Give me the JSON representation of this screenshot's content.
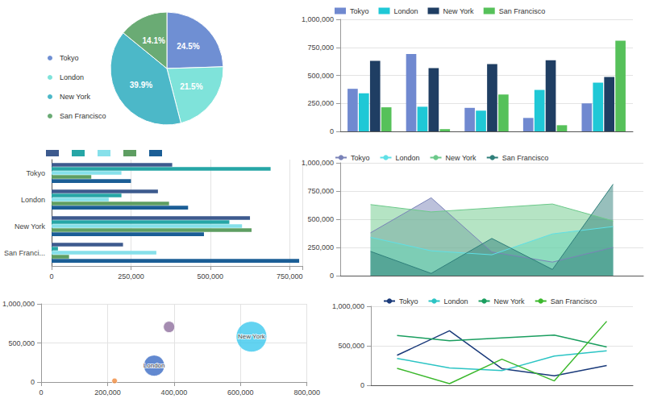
{
  "chart_data": [
    {
      "type": "pie",
      "categories": [
        "Tokyo",
        "London",
        "New York",
        "San Francisco"
      ],
      "values": [
        24.5,
        21.5,
        39.9,
        14.1
      ],
      "value_labels": [
        "24.5%",
        "21.5%",
        "39.9%",
        "14.1%"
      ],
      "colors": [
        "#6f8fd3",
        "#7fe3da",
        "#4cb8c8",
        "#6aab74"
      ],
      "data_labels": true,
      "legend": "left"
    },
    {
      "type": "bar",
      "categories": [
        null,
        null,
        null,
        null,
        null
      ],
      "series": [
        {
          "name": "Tokyo",
          "color": "#7089d0",
          "values": [
            380000,
            690000,
            210000,
            120000,
            250000
          ]
        },
        {
          "name": "London",
          "color": "#1fc8d6",
          "values": [
            340000,
            220000,
            185000,
            370000,
            435000
          ]
        },
        {
          "name": "New York",
          "color": "#1f3e63",
          "values": [
            630000,
            565000,
            600000,
            635000,
            485000
          ]
        },
        {
          "name": "San Francisco",
          "color": "#56c15a",
          "values": [
            215000,
            20000,
            330000,
            55000,
            810000
          ]
        }
      ],
      "ylim": [
        0,
        1000000
      ],
      "yticks": [
        0,
        {
          "value": 250000,
          "label": "250,000"
        },
        {
          "value": 500000,
          "label": "500,000"
        },
        {
          "value": 750000,
          "label": "750,000"
        },
        {
          "value": 1000000,
          "label": "1,000,000"
        }
      ],
      "grid": true,
      "legend": "top"
    },
    {
      "type": "bar",
      "orientation": "horizontal",
      "categories": [
        "Tokyo",
        "London",
        "New York",
        "San Franci..."
      ],
      "series": [
        {
          "color": "#3d5a8e",
          "values": [
            380000,
            335000,
            625000,
            225000
          ]
        },
        {
          "color": "#26a6a6",
          "values": [
            690000,
            220000,
            560000,
            20000
          ]
        },
        {
          "color": "#86e0ea",
          "values": [
            220000,
            180000,
            600000,
            330000
          ]
        },
        {
          "color": "#5e9e62",
          "values": [
            125000,
            370000,
            630000,
            55000
          ]
        },
        {
          "color": "#1b5e96",
          "values": [
            250000,
            430000,
            480000,
            780000
          ]
        }
      ],
      "xlim": [
        0,
        790000
      ],
      "xticks": [
        0,
        {
          "value": 250000,
          "label": "250,000"
        },
        {
          "value": 500000,
          "label": "500,000"
        },
        {
          "value": 750000,
          "label": "750,000"
        }
      ],
      "grid": true,
      "legend": "top"
    },
    {
      "type": "area",
      "categories": [
        null,
        null,
        null,
        null,
        null
      ],
      "series": [
        {
          "name": "Tokyo",
          "color": "#7a83b8",
          "values": [
            380000,
            690000,
            210000,
            120000,
            250000
          ]
        },
        {
          "name": "London",
          "color": "#5fe0e6",
          "values": [
            340000,
            220000,
            185000,
            370000,
            435000
          ]
        },
        {
          "name": "New York",
          "color": "#6cc98a",
          "values": [
            630000,
            565000,
            600000,
            635000,
            485000
          ]
        },
        {
          "name": "San Francisco",
          "color": "#2f7f7a",
          "values": [
            215000,
            20000,
            330000,
            55000,
            810000
          ]
        }
      ],
      "ylim": [
        0,
        1000000
      ],
      "yticks": [
        0,
        {
          "value": 250000,
          "label": "250,000"
        },
        {
          "value": 500000,
          "label": "500,000"
        },
        {
          "value": 750000,
          "label": "750,000"
        },
        {
          "value": 1000000,
          "label": "1,000,000"
        }
      ],
      "grid": true,
      "legend": "top"
    },
    {
      "type": "scatter",
      "x": [
        221000,
        385000,
        340000,
        633000
      ],
      "values": [
        15000,
        705000,
        210000,
        580000
      ],
      "sizes": [
        7,
        14,
        26,
        38
      ],
      "labels": [
        null,
        null,
        "London",
        "New York"
      ],
      "colors": [
        "#f08a3c",
        "#8e6f9e",
        "#3b6cc4",
        "#3cc8ee"
      ],
      "xlim": [
        0,
        800000
      ],
      "xticks": [
        0,
        {
          "value": 200000,
          "label": "200,000"
        },
        {
          "value": 400000,
          "label": "400,000"
        },
        {
          "value": 600000,
          "label": "600,000"
        },
        {
          "value": 800000,
          "label": "800,000"
        }
      ],
      "ylim": [
        0,
        1000000
      ],
      "yticks": [
        0,
        {
          "value": 500000,
          "label": "500,000"
        },
        {
          "value": 1000000,
          "label": "1,000,000"
        }
      ],
      "grid": true
    },
    {
      "type": "line",
      "categories": [
        null,
        null,
        null,
        null,
        null
      ],
      "series": [
        {
          "name": "Tokyo",
          "color": "#1a3a7a",
          "values": [
            380000,
            690000,
            210000,
            120000,
            250000
          ]
        },
        {
          "name": "London",
          "color": "#2bc4c4",
          "values": [
            340000,
            220000,
            185000,
            370000,
            435000
          ]
        },
        {
          "name": "New York",
          "color": "#1a9e5f",
          "values": [
            630000,
            565000,
            600000,
            635000,
            485000
          ]
        },
        {
          "name": "San Francisco",
          "color": "#3cb82d",
          "values": [
            215000,
            20000,
            330000,
            55000,
            810000
          ]
        }
      ],
      "ylim": [
        0,
        1000000
      ],
      "yticks": [
        0,
        {
          "value": 500000,
          "label": "500,000"
        },
        {
          "value": 1000000,
          "label": "1,000,000"
        }
      ],
      "grid": true,
      "legend": "top"
    }
  ]
}
